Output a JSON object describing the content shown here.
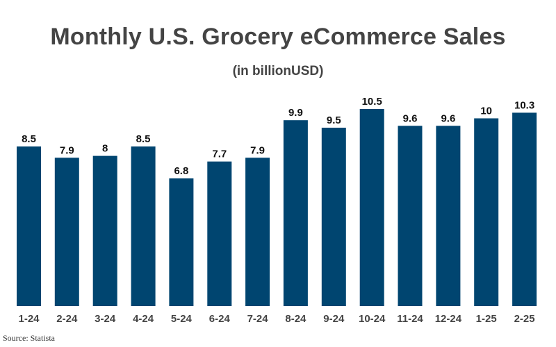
{
  "chart_data": {
    "type": "bar",
    "title": "Monthly U.S. Grocery eCommerce Sales",
    "subtitle": "(in billionUSD)",
    "categories": [
      "1-24",
      "2-24",
      "3-24",
      "4-24",
      "5-24",
      "6-24",
      "7-24",
      "8-24",
      "9-24",
      "10-24",
      "11-24",
      "12-24",
      "1-25",
      "2-25"
    ],
    "values": [
      8.5,
      7.9,
      8,
      8.5,
      6.8,
      7.7,
      7.9,
      9.9,
      9.5,
      10.5,
      9.6,
      9.6,
      10,
      10.3
    ],
    "value_labels": [
      "8.5",
      "7.9",
      "8",
      "8.5",
      "6.8",
      "7.7",
      "7.9",
      "9.9",
      "9.5",
      "10.5",
      "9.6",
      "9.6",
      "10",
      "10.3"
    ],
    "xlabel": "",
    "ylabel": "",
    "ylim": [
      0,
      10.5
    ],
    "grid": false,
    "bar_color": "#004570",
    "data_labels": true
  },
  "source": "Source: Statista"
}
